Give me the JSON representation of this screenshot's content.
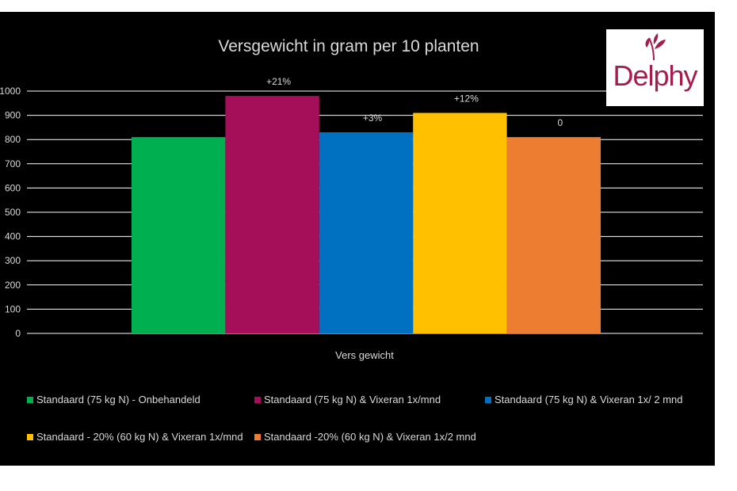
{
  "chart_data": {
    "type": "bar",
    "title": "Versgewicht in gram per 10 planten",
    "xlabel": "Vers gewicht",
    "ylabel": "",
    "ylim": [
      0,
      1000
    ],
    "yticks": [
      0,
      100,
      200,
      300,
      400,
      500,
      600,
      700,
      800,
      900,
      1000
    ],
    "grid": true,
    "legend_position": "bottom",
    "categories": [
      "Vers gewicht"
    ],
    "series": [
      {
        "name": "Standaard  (75 kg N) - Onbehandeld",
        "values": [
          810
        ],
        "color": "#00b050",
        "label": ""
      },
      {
        "name": "Standaard (75 kg N) & Vixeran 1x/mnd",
        "values": [
          980
        ],
        "color": "#a50f5a",
        "label": "+21%"
      },
      {
        "name": "Standaard (75 kg N) & Vixeran 1x/ 2 mnd",
        "values": [
          830
        ],
        "color": "#0070c0",
        "label": "+3%"
      },
      {
        "name": "Standaard - 20% (60 kg N) & Vixeran 1x/mnd",
        "values": [
          910
        ],
        "color": "#ffc000",
        "label": "+12%"
      },
      {
        "name": "Standaard -20% (60 kg N) & Vixeran 1x/2 mnd",
        "values": [
          810
        ],
        "color": "#ed7d31",
        "label": "0"
      }
    ]
  },
  "logo": {
    "text": "Delphy"
  }
}
